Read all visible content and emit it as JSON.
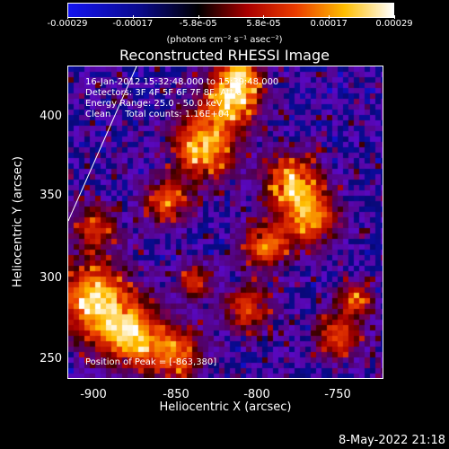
{
  "colorbar": {
    "ticks": [
      "-0.00029",
      "-0.00017",
      "-5.8e-05",
      "5.8e-05",
      "0.00017",
      "0.00029"
    ],
    "unit_label": "(photons cm⁻² s⁻¹ asec⁻²)"
  },
  "plot": {
    "title": "Reconstructed RHESSI Image",
    "info": {
      "time": "16-Jan-2012 15:32:48.000 to 15:39:48.000",
      "detectors": "Detectors: 3F 4F 5F 6F 7F 8F, Att 0",
      "energy": "Energy Range: 25.0 - 50.0 keV",
      "clean": "Clean     Total counts: 1.16E+04",
      "peak": "Position of Peak = [-863,380]"
    },
    "xlabel": "Heliocentric X (arcsec)",
    "ylabel": "Heliocentric Y (arcsec)",
    "x_ticks": [
      "-900",
      "-850",
      "-800",
      "-750"
    ],
    "y_ticks": [
      "400",
      "350",
      "300",
      "250"
    ]
  },
  "chart_data": {
    "type": "heatmap",
    "title": "Reconstructed RHESSI Image",
    "xlabel": "Heliocentric X (arcsec)",
    "ylabel": "Heliocentric Y (arcsec)",
    "xlim": [
      -917,
      -725
    ],
    "ylim": [
      235,
      427
    ],
    "colorbar_range": [
      -0.00029,
      0.00029
    ],
    "colormap": "red-temperature",
    "peak_position": [
      -863,
      380
    ],
    "limb_line": true
  },
  "footer": {
    "date": "8-May-2022 21:18"
  }
}
